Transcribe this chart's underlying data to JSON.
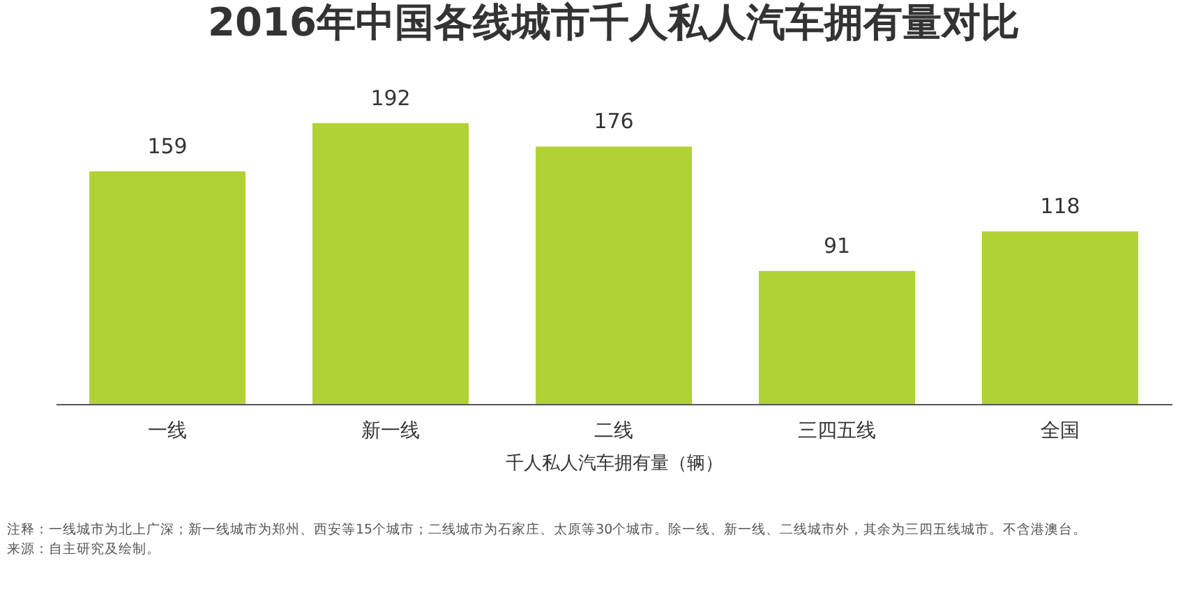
{
  "chart_data": {
    "type": "bar",
    "title": "2016年中国各线城市千人私人汽车拥有量对比",
    "categories": [
      "一线",
      "新一线",
      "二线",
      "三四五线",
      "全国"
    ],
    "values": [
      159,
      192,
      176,
      91,
      118
    ],
    "color": "#b1d235",
    "xlabel": "千人私人汽车拥有量（辆）",
    "data_labels": true,
    "grid": false,
    "annotations": [
      "注释：一线城市为北上广深；新一线城市为郑州、西安等15个城市；二线城市为石家庄、太原等30个城市。除一线、新一线、二线城市外，其余为三四五线城市。不含港澳台。",
      "来源：自主研究及绘制。"
    ]
  }
}
